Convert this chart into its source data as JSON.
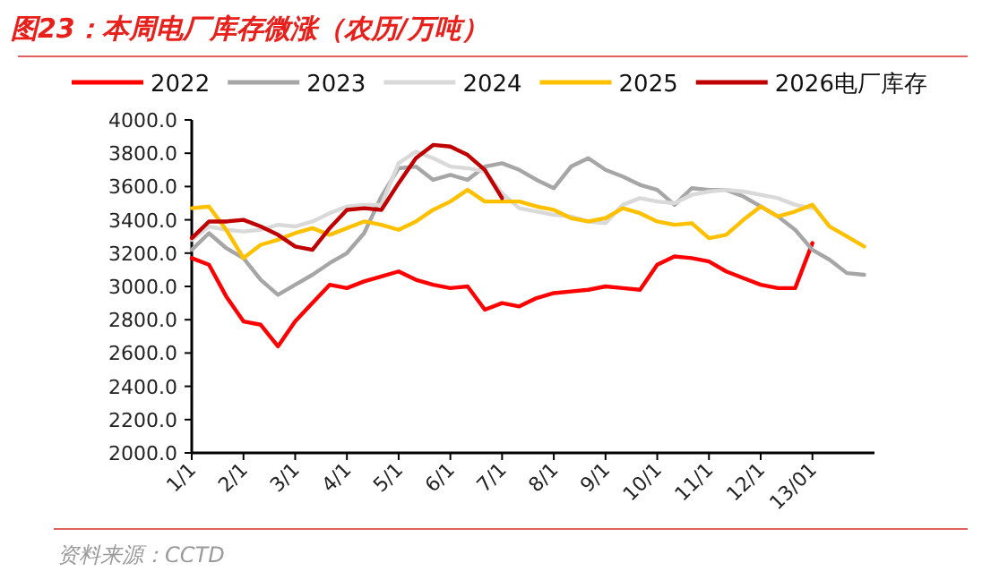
{
  "chart_data": {
    "type": "line",
    "title": "图23：本周电厂库存微涨（农历/万吨）",
    "annotations": [
      "资料来源：CCTD"
    ],
    "categories": [
      "1/1",
      null,
      null,
      "2/1",
      null,
      null,
      "3/1",
      null,
      null,
      "4/1",
      null,
      null,
      "5/1",
      null,
      null,
      "6/1",
      null,
      null,
      "7/1",
      null,
      null,
      "8/1",
      null,
      null,
      "9/1",
      null,
      null,
      "10/1",
      null,
      null,
      "11/1",
      null,
      null,
      "12/1",
      null,
      null,
      "13/01",
      null,
      null,
      null
    ],
    "ylim": [
      2000,
      4000
    ],
    "yticks": [
      {
        "value": 2000,
        "label": "2000.0"
      },
      {
        "value": 2200,
        "label": "2200.0"
      },
      {
        "value": 2400,
        "label": "2400.0"
      },
      {
        "value": 2600,
        "label": "2600.0"
      },
      {
        "value": 2800,
        "label": "2800.0"
      },
      {
        "value": 3000,
        "label": "3000.0"
      },
      {
        "value": 3200,
        "label": "3200.0"
      },
      {
        "value": 3400,
        "label": "3400.0"
      },
      {
        "value": 3600,
        "label": "3600.0"
      },
      {
        "value": 3800,
        "label": "3800.0"
      },
      {
        "value": 4000,
        "label": "4000.0"
      }
    ],
    "legend": "top",
    "line_style": "solid",
    "series": [
      {
        "name": "2022",
        "color": "#ff0000",
        "values": [
          3170,
          3130,
          2940,
          2790,
          2770,
          2640,
          2790,
          2900,
          3010,
          2990,
          3030,
          3060,
          3090,
          3040,
          3010,
          2990,
          3000,
          2860,
          2900,
          2880,
          2930,
          2960,
          2970,
          2980,
          3000,
          2990,
          2980,
          3130,
          3180,
          3170,
          3150,
          3090,
          3050,
          3010,
          2990,
          2990,
          3260,
          null,
          null,
          null
        ]
      },
      {
        "name": "2023",
        "color": "#a6a6a6",
        "values": [
          3220,
          3320,
          3230,
          3170,
          3040,
          2950,
          3010,
          3070,
          3140,
          3200,
          3320,
          3540,
          3710,
          3720,
          3640,
          3670,
          3640,
          3720,
          3740,
          3700,
          3640,
          3590,
          3720,
          3770,
          3700,
          3660,
          3610,
          3580,
          3490,
          3590,
          3580,
          3580,
          3540,
          3480,
          3420,
          3340,
          3220,
          3160,
          3080,
          3070
        ]
      },
      {
        "name": "2024",
        "color": "#d9d9d9",
        "values": [
          3280,
          3360,
          3340,
          3330,
          3340,
          3370,
          3360,
          3390,
          3440,
          3480,
          3490,
          3490,
          3740,
          3810,
          3770,
          3720,
          3710,
          3690,
          3560,
          3470,
          3450,
          3430,
          3420,
          3390,
          3380,
          3490,
          3530,
          3510,
          3500,
          3550,
          3570,
          3580,
          3570,
          3550,
          3530,
          3490,
          3470,
          null,
          null,
          null
        ]
      },
      {
        "name": "2025",
        "color": "#ffc000",
        "values": [
          3470,
          3480,
          3340,
          3170,
          3250,
          3280,
          3320,
          3350,
          3310,
          3350,
          3390,
          3370,
          3340,
          3390,
          3460,
          3510,
          3580,
          3510,
          3510,
          3510,
          3480,
          3460,
          3410,
          3390,
          3410,
          3470,
          3440,
          3390,
          3370,
          3380,
          3290,
          3310,
          3400,
          3480,
          3420,
          3450,
          3490,
          3360,
          3300,
          3240
        ]
      },
      {
        "name": "2026电厂库存",
        "color": "#c00000",
        "values": [
          3290,
          3390,
          3390,
          3400,
          3360,
          3310,
          3240,
          3220,
          3350,
          3460,
          3470,
          3460,
          3620,
          3770,
          3850,
          3840,
          3790,
          3700,
          3530,
          null,
          null,
          null,
          null,
          null,
          null,
          null,
          null,
          null,
          null,
          null,
          null,
          null,
          null,
          null,
          null,
          null,
          null,
          null,
          null,
          null
        ]
      }
    ]
  }
}
